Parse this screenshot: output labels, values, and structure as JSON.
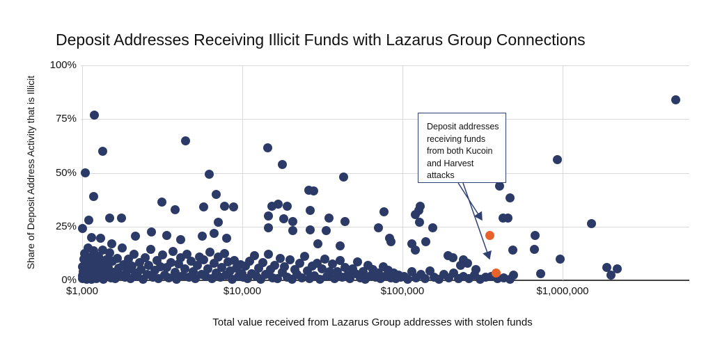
{
  "title": "Deposit Addresses Receiving Illicit Funds with Lazarus Group Connections",
  "annotation": {
    "text": "Deposit addresses receiving funds from both Kucoin and Harvest attacks"
  },
  "colors": {
    "point": "#2b3a67",
    "highlight": "#e8622a",
    "gridline": "#d9d9d9",
    "axis_line": "#424242",
    "annotation_border": "#2e4172",
    "background": "#ffffff"
  },
  "chart_data": {
    "type": "scatter",
    "title": "Deposit Addresses Receiving Illicit Funds with Lazarus Group Connections",
    "xlabel": "Total value received from Lazarus Group addresses with stolen funds",
    "ylabel": "Share of Deposit Address Activity that is Illicit",
    "x_scale": "log",
    "xlim": [
      1000,
      6300000
    ],
    "ylim": [
      0,
      100
    ],
    "grid": true,
    "x_ticks": [
      {
        "value": 1000,
        "label": "$1,000"
      },
      {
        "value": 10000,
        "label": "$10,000"
      },
      {
        "value": 100000,
        "label": "$100,000"
      },
      {
        "value": 1000000,
        "label": "$1,000,000"
      }
    ],
    "y_ticks": [
      {
        "value": 0,
        "label": "0%"
      },
      {
        "value": 25,
        "label": "25%"
      },
      {
        "value": 50,
        "label": "50%"
      },
      {
        "value": 75,
        "label": "75%"
      },
      {
        "value": 100,
        "label": "100%"
      }
    ],
    "annotation": {
      "text": "Deposit addresses receiving funds from both Kucoin and Harvest attacks",
      "points_to": "highlighted orange points"
    },
    "series": [
      {
        "name": "deposit-addresses",
        "color": "#2b3a67",
        "units": [
          "usd_received",
          "illicit_share_pct"
        ],
        "points": [
          [
            1190,
            77
          ],
          [
            1350,
            60
          ],
          [
            1050,
            50
          ],
          [
            4440,
            65
          ],
          [
            6200,
            49.5
          ],
          [
            14400,
            61.5
          ],
          [
            17800,
            54
          ],
          [
            43000,
            48
          ],
          [
            26000,
            42
          ],
          [
            28000,
            41.5
          ],
          [
            930000,
            56
          ],
          [
            5100000,
            84
          ],
          [
            404000,
            44
          ],
          [
            470000,
            38.5
          ],
          [
            427000,
            29
          ],
          [
            455000,
            29
          ],
          [
            1520000,
            26.5
          ],
          [
            1175,
            39
          ],
          [
            3150,
            36.5
          ],
          [
            3800,
            33
          ],
          [
            5750,
            34
          ],
          [
            6900,
            40
          ],
          [
            7750,
            34.5
          ],
          [
            8800,
            34
          ],
          [
            1100,
            28
          ],
          [
            1480,
            29
          ],
          [
            1760,
            29
          ],
          [
            7100,
            27
          ],
          [
            1010,
            24
          ],
          [
            15300,
            34.5
          ],
          [
            16700,
            35.5
          ],
          [
            19100,
            34.5
          ],
          [
            14600,
            30
          ],
          [
            18200,
            28.5
          ],
          [
            20700,
            27.5
          ],
          [
            26600,
            32.5
          ],
          [
            34900,
            29
          ],
          [
            44000,
            27.5
          ],
          [
            76700,
            32
          ],
          [
            129000,
            34.5
          ],
          [
            127000,
            32.5
          ],
          [
            120000,
            30.5
          ],
          [
            128000,
            27
          ],
          [
            154000,
            24.5
          ],
          [
            676000,
            21
          ],
          [
            664000,
            14.5
          ],
          [
            85000,
            18
          ],
          [
            114000,
            17
          ],
          [
            120000,
            14
          ],
          [
            140000,
            18
          ],
          [
            490000,
            14
          ],
          [
            193000,
            11.5
          ],
          [
            207000,
            10.5
          ],
          [
            240000,
            9.5
          ],
          [
            255000,
            8
          ],
          [
            230000,
            7
          ],
          [
            288000,
            5
          ],
          [
            970000,
            10
          ],
          [
            1880000,
            6
          ],
          [
            2200000,
            5.5
          ],
          [
            2000000,
            2.5
          ],
          [
            730000,
            3
          ],
          [
            495000,
            2.5
          ],
          [
            1150,
            20
          ],
          [
            1310,
            19.5
          ],
          [
            1525,
            17
          ],
          [
            2150,
            20.5
          ],
          [
            2700,
            22.5
          ],
          [
            3380,
            21
          ],
          [
            4130,
            19
          ],
          [
            5600,
            20.5
          ],
          [
            6700,
            22
          ],
          [
            8020,
            19.5
          ],
          [
            14500,
            24.5
          ],
          [
            20600,
            23
          ],
          [
            26500,
            23.5
          ],
          [
            33500,
            23
          ],
          [
            70500,
            24.5
          ],
          [
            83000,
            19.5
          ],
          [
            29500,
            17
          ],
          [
            41000,
            16
          ],
          [
            1000,
            2.1
          ],
          [
            1005,
            6.3
          ],
          [
            1010,
            0.9
          ],
          [
            1020,
            4.2
          ],
          [
            1025,
            9.8
          ],
          [
            1030,
            1.6
          ],
          [
            1040,
            12.4
          ],
          [
            1050,
            3.1
          ],
          [
            1060,
            7.4
          ],
          [
            1070,
            0.6
          ],
          [
            1080,
            5.5
          ],
          [
            1090,
            15.2
          ],
          [
            1100,
            2.6
          ],
          [
            1110,
            8.7
          ],
          [
            1120,
            1.2
          ],
          [
            1130,
            10.9
          ],
          [
            1140,
            4.6
          ],
          [
            1150,
            0.4
          ],
          [
            1165,
            6.9
          ],
          [
            1180,
            13.8
          ],
          [
            1195,
            2.9
          ],
          [
            1210,
            8.1
          ],
          [
            1225,
            0.8
          ],
          [
            1240,
            5.1
          ],
          [
            1260,
            11.2
          ],
          [
            1280,
            3.5
          ],
          [
            1300,
            1.9
          ],
          [
            1320,
            7.7
          ],
          [
            1340,
            14.1
          ],
          [
            1360,
            0.5
          ],
          [
            1385,
            4.9
          ],
          [
            1410,
            9.4
          ],
          [
            1435,
            2.2
          ],
          [
            1460,
            6.1
          ],
          [
            1490,
            12.8
          ],
          [
            1520,
            1.1
          ],
          [
            1550,
            8.9
          ],
          [
            1580,
            3.8
          ],
          [
            1610,
            0.7
          ],
          [
            1650,
            10.2
          ],
          [
            1690,
            5.8
          ],
          [
            1730,
            2.4
          ],
          [
            1770,
            15.0
          ],
          [
            1810,
            7.2
          ],
          [
            1850,
            1.4
          ],
          [
            1900,
            4.4
          ],
          [
            1950,
            9.9
          ],
          [
            2000,
            0.9
          ],
          [
            2050,
            6.6
          ],
          [
            2100,
            12.1
          ],
          [
            2160,
            3.3
          ],
          [
            2220,
            1.7
          ],
          [
            2280,
            8.4
          ],
          [
            2340,
            5.0
          ],
          [
            2400,
            0.6
          ],
          [
            2470,
            10.6
          ],
          [
            2540,
            2.8
          ],
          [
            2610,
            7.0
          ],
          [
            2680,
            14.4
          ],
          [
            2760,
            1.3
          ],
          [
            2840,
            4.7
          ],
          [
            2920,
            9.1
          ],
          [
            3000,
            0.8
          ],
          [
            3090,
            6.2
          ],
          [
            3180,
            11.8
          ],
          [
            3270,
            2.5
          ],
          [
            3370,
            5.9
          ],
          [
            3470,
            1.0
          ],
          [
            3570,
            8.2
          ],
          [
            3680,
            13.5
          ],
          [
            3790,
            3.6
          ],
          [
            3900,
            0.5
          ],
          [
            4020,
            7.5
          ],
          [
            4140,
            10.4
          ],
          [
            4260,
            2.0
          ],
          [
            4390,
            5.4
          ],
          [
            4520,
            12.2
          ],
          [
            4660,
            1.5
          ],
          [
            4800,
            8.8
          ],
          [
            4940,
            4.0
          ],
          [
            5090,
            0.7
          ],
          [
            5240,
            6.8
          ],
          [
            5400,
            11.0
          ],
          [
            5560,
            2.7
          ],
          [
            5730,
            9.6
          ],
          [
            5900,
            1.8
          ],
          [
            6080,
            5.3
          ],
          [
            6260,
            13.0
          ],
          [
            6450,
            0.9
          ],
          [
            6640,
            7.9
          ],
          [
            6840,
            3.4
          ],
          [
            7050,
            10.8
          ],
          [
            7260,
            1.6
          ],
          [
            7480,
            6.0
          ],
          [
            7710,
            12.6
          ],
          [
            7940,
            2.3
          ],
          [
            8180,
            8.6
          ],
          [
            8430,
            4.5
          ],
          [
            8680,
            0.6
          ],
          [
            8940,
            9.3
          ],
          [
            9210,
            5.7
          ],
          [
            9490,
            1.9
          ],
          [
            9780,
            7.3
          ],
          [
            9950,
            3.0
          ],
          [
            10200,
            1.4
          ],
          [
            10500,
            6.5
          ],
          [
            10800,
            0.7
          ],
          [
            11100,
            9.0
          ],
          [
            11500,
            3.2
          ],
          [
            11900,
            11.6
          ],
          [
            12300,
            1.9
          ],
          [
            12700,
            5.6
          ],
          [
            13100,
            0.5
          ],
          [
            13500,
            8.3
          ],
          [
            14000,
            2.6
          ],
          [
            14500,
            12.0
          ],
          [
            15000,
            4.9
          ],
          [
            15500,
            1.1
          ],
          [
            16000,
            7.1
          ],
          [
            16600,
            0.8
          ],
          [
            17200,
            10.1
          ],
          [
            17800,
            3.7
          ],
          [
            18400,
            6.4
          ],
          [
            19100,
            1.6
          ],
          [
            19800,
            9.5
          ],
          [
            20500,
            0.6
          ],
          [
            21200,
            5.0
          ],
          [
            22000,
            2.9
          ],
          [
            22800,
            7.8
          ],
          [
            23600,
            1.2
          ],
          [
            24500,
            11.3
          ],
          [
            25400,
            4.3
          ],
          [
            26300,
            0.9
          ],
          [
            27300,
            6.7
          ],
          [
            28300,
            2.1
          ],
          [
            29300,
            8.0
          ],
          [
            30400,
            0.5
          ],
          [
            31500,
            5.2
          ],
          [
            32700,
            10.0
          ],
          [
            33900,
            1.8
          ],
          [
            35200,
            3.9
          ],
          [
            36500,
            7.6
          ],
          [
            37800,
            0.7
          ],
          [
            39200,
            4.1
          ],
          [
            40700,
            9.2
          ],
          [
            42200,
            1.3
          ],
          [
            43800,
            6.1
          ],
          [
            45400,
            2.4
          ],
          [
            47100,
            0.8
          ],
          [
            48900,
            5.5
          ],
          [
            50700,
            3.1
          ],
          [
            52600,
            8.5
          ],
          [
            54600,
            1.0
          ],
          [
            56600,
            4.2
          ],
          [
            58700,
            0.6
          ],
          [
            60900,
            7.0
          ],
          [
            63200,
            2.2
          ],
          [
            65600,
            5.1
          ],
          [
            68000,
            1.5
          ],
          [
            70600,
            3.5
          ],
          [
            73200,
            0.9
          ],
          [
            75900,
            6.3
          ],
          [
            78700,
            2.0
          ],
          [
            81600,
            4.6
          ],
          [
            84700,
            1.2
          ],
          [
            87800,
            3.3
          ],
          [
            91100,
            0.7
          ],
          [
            94500,
            2.5
          ],
          [
            98000,
            1.6
          ],
          [
            103000,
            1.8
          ],
          [
            108000,
            0.6
          ],
          [
            115000,
            3.9
          ],
          [
            122000,
            1.1
          ],
          [
            130000,
            2.7
          ],
          [
            139000,
            0.8
          ],
          [
            148000,
            4.4
          ],
          [
            158000,
            1.5
          ],
          [
            169000,
            0.5
          ],
          [
            181000,
            2.9
          ],
          [
            194000,
            1.0
          ],
          [
            208000,
            3.3
          ],
          [
            224000,
            0.7
          ],
          [
            241000,
            1.9
          ],
          [
            260000,
            0.9
          ],
          [
            281000,
            2.4
          ],
          [
            305000,
            0.6
          ],
          [
            331000,
            1.3
          ],
          [
            360000,
            1.7
          ],
          [
            392000,
            0.8
          ],
          [
            428000,
            1.2
          ],
          [
            468000,
            0.5
          ]
        ]
      },
      {
        "name": "kucoin-harvest-overlap",
        "color": "#e8622a",
        "units": [
          "usd_received",
          "illicit_share_pct"
        ],
        "points": [
          [
            350000,
            21
          ],
          [
            385000,
            3.5
          ]
        ]
      }
    ]
  }
}
